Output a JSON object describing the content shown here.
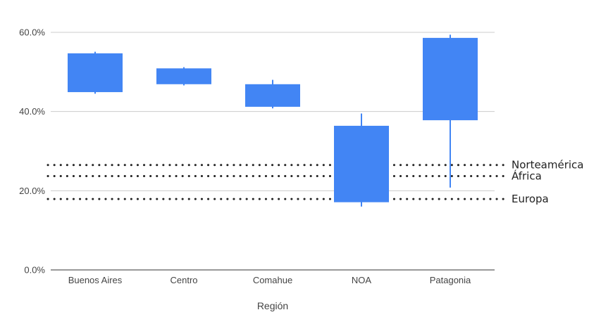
{
  "chart_data": {
    "type": "candlestick",
    "xlabel": "Región",
    "ylabel": "",
    "ylim": [
      0,
      0.6
    ],
    "y_ticks": [
      {
        "value": 0.0,
        "label": "0.0%"
      },
      {
        "value": 0.2,
        "label": "20.0%"
      },
      {
        "value": 0.4,
        "label": "40.0%"
      },
      {
        "value": 0.6,
        "label": "60.0%"
      }
    ],
    "grid": true,
    "color": "#4285f4",
    "categories": [
      "Buenos Aires",
      "Centro",
      "Comahue",
      "NOA",
      "Patagonia"
    ],
    "boxes": [
      {
        "low": 0.445,
        "box_low": 0.449,
        "box_high": 0.547,
        "high": 0.551
      },
      {
        "low": 0.466,
        "box_low": 0.469,
        "box_high": 0.509,
        "high": 0.512
      },
      {
        "low": 0.408,
        "box_low": 0.412,
        "box_high": 0.469,
        "high": 0.48
      },
      {
        "low": 0.16,
        "box_low": 0.171,
        "box_high": 0.364,
        "high": 0.395
      },
      {
        "low": 0.208,
        "box_low": 0.378,
        "box_high": 0.586,
        "high": 0.594
      }
    ],
    "reference_lines": [
      {
        "label": "Norteamérica",
        "value": 0.265
      },
      {
        "label": "África",
        "value": 0.237
      },
      {
        "label": "Europa",
        "value": 0.179
      }
    ]
  }
}
